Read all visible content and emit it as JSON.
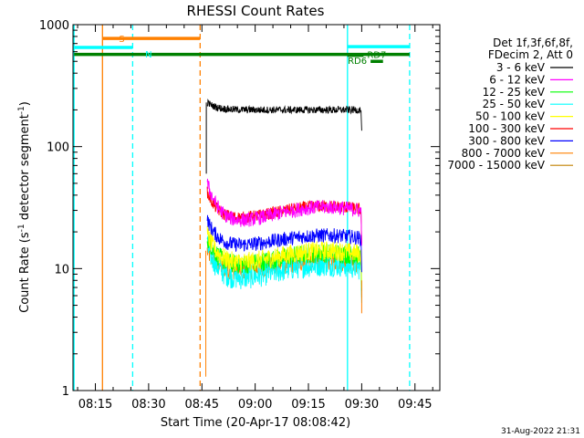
{
  "chart_data": {
    "type": "line",
    "title": "RHESSI Count Rates",
    "xlabel": "Start Time (20-Apr-17 08:08:42)",
    "ylabel_main": "Count Rate (s",
    "ylabel_sup1": "-1",
    "ylabel_mid": " detector segment",
    "ylabel_sup2": "-1",
    "ylabel_end": ")",
    "y_scale": "log",
    "ylim": [
      1,
      1000
    ],
    "x_range_minutes": [
      488.7,
      592
    ],
    "x_ticks": [
      {
        "m": 495,
        "label": "08:15"
      },
      {
        "m": 510,
        "label": "08:30"
      },
      {
        "m": 525,
        "label": "08:45"
      },
      {
        "m": 540,
        "label": "09:00"
      },
      {
        "m": 555,
        "label": "09:15"
      },
      {
        "m": 570,
        "label": "09:30"
      },
      {
        "m": 585,
        "label": "09:45"
      }
    ],
    "y_ticks": [
      {
        "v": 1,
        "label": "1"
      },
      {
        "v": 10,
        "label": "10"
      },
      {
        "v": 100,
        "label": "100"
      },
      {
        "v": 1000,
        "label": "1000"
      }
    ],
    "legend_header": [
      "Det 1f,3f,6f,8f,",
      "FDecim 2, Att 0"
    ],
    "legend_position": "right",
    "series": [
      {
        "name": "3 - 6 keV",
        "color": "#000000",
        "base": 200,
        "startv": 230,
        "noise": 0.03,
        "wave": 0.0
      },
      {
        "name": "6 - 12 keV",
        "color": "#ff00ff",
        "base": 28,
        "startv": 50,
        "noise": 0.06,
        "wave": 0.14
      },
      {
        "name": "12 - 25 keV",
        "color": "#00ff00",
        "base": 12,
        "startv": 18,
        "noise": 0.08,
        "wave": 0.12
      },
      {
        "name": "25 - 50 keV",
        "color": "#00ffff",
        "base": 9.5,
        "startv": 15,
        "noise": 0.1,
        "wave": 0.14
      },
      {
        "name": "50 - 100 keV",
        "color": "#ffff00",
        "base": 12.5,
        "startv": 19,
        "noise": 0.08,
        "wave": 0.12
      },
      {
        "name": "100 - 300 keV",
        "color": "#ff0000",
        "base": 29,
        "startv": 42,
        "noise": 0.05,
        "wave": 0.12
      },
      {
        "name": "300 - 800 keV",
        "color": "#0000ff",
        "base": 17,
        "startv": 25,
        "noise": 0.06,
        "wave": 0.1
      },
      {
        "name": "800 - 7000 keV",
        "color": "#ff8000",
        "base": 10.5,
        "startv": 14,
        "noise": 0.08,
        "wave": 0.1
      },
      {
        "name": "7000 - 15000 keV",
        "color": "#c08000",
        "base": 0,
        "startv": 0,
        "noise": 0,
        "wave": 0
      }
    ],
    "data_start_minute": 526.5,
    "data_end_minute": 569.8,
    "annotations": {
      "vertical_lines": [
        {
          "m": 489.0,
          "color": "#00ffff",
          "style": "solid"
        },
        {
          "m": 497.0,
          "color": "#ff8000",
          "style": "solid"
        },
        {
          "m": 505.5,
          "color": "#00ffff",
          "style": "dashed"
        },
        {
          "m": 524.5,
          "color": "#ff8000",
          "style": "dashed"
        },
        {
          "m": 566.0,
          "color": "#00ffff",
          "style": "solid"
        },
        {
          "m": 583.5,
          "color": "#00ffff",
          "style": "dashed"
        }
      ],
      "bars": [
        {
          "label": "S",
          "color": "#ff8000",
          "m0": 497.0,
          "m1": 524.5,
          "v": 770
        },
        {
          "label": "N",
          "color": "#00ffff",
          "m0": 489.0,
          "m1": 505.5,
          "v": 650
        },
        {
          "label": "",
          "color": "#00ffff",
          "m0": 566.0,
          "m1": 583.5,
          "v": 660
        },
        {
          "label": "",
          "color": "#008000",
          "m0": 489.0,
          "m1": 583.5,
          "v": 570
        },
        {
          "label": "RD7",
          "color": "#008000",
          "m0": 566.0,
          "m1": 570.5,
          "v": 560
        },
        {
          "label": "RD6",
          "color": "#008000",
          "m0": 572.5,
          "m1": 576.0,
          "v": 500
        }
      ]
    }
  },
  "timestamp": "31-Aug-2022 21:31"
}
